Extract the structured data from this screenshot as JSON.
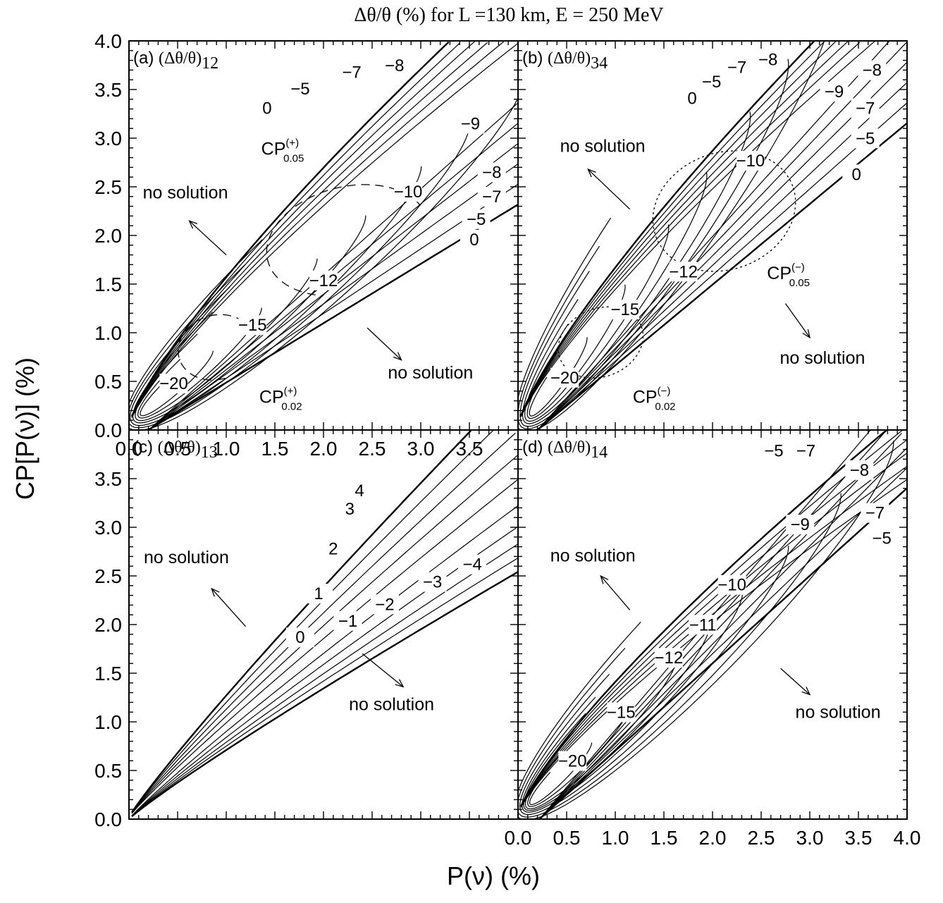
{
  "title": "Δθ/θ (%) for L =130 km, E = 250 MeV",
  "xlabel": "P(ν)  (%)",
  "ylabel": "CP[P(ν)] (%)",
  "chart_data": [
    {
      "type": "line",
      "panel": "a",
      "label_prefix": "(a)",
      "label_quantity": "(Δθ/θ)",
      "label_subscript": "12",
      "xlim": [
        0.0,
        4.0
      ],
      "ylim": [
        0.0,
        4.0
      ],
      "x_ticks": [
        "0.0",
        "0.5",
        "1.0",
        "1.5",
        "2.0",
        "2.5",
        "3.0",
        "3.5",
        ""
      ],
      "y_ticks": [
        "0.0",
        "0.5",
        "1.0",
        "1.5",
        "2.0",
        "2.5",
        "3.0",
        "3.5",
        "4.0"
      ],
      "contour_labels": [
        {
          "text": "0",
          "x": 1.42,
          "y": 3.25
        },
        {
          "text": "−5",
          "x": 1.76,
          "y": 3.45
        },
        {
          "text": "−7",
          "x": 2.29,
          "y": 3.62
        },
        {
          "text": "−8",
          "x": 2.73,
          "y": 3.69
        },
        {
          "text": "−9",
          "x": 3.51,
          "y": 3.09
        },
        {
          "text": "−8",
          "x": 3.73,
          "y": 2.59
        },
        {
          "text": "−7",
          "x": 3.73,
          "y": 2.34
        },
        {
          "text": "−5",
          "x": 3.57,
          "y": 2.11
        },
        {
          "text": "0",
          "x": 3.55,
          "y": 1.9
        },
        {
          "text": "−10",
          "x": 2.87,
          "y": 2.39
        },
        {
          "text": "−12",
          "x": 2.0,
          "y": 1.48
        },
        {
          "text": "−15",
          "x": 1.27,
          "y": 1.02
        },
        {
          "text": "−20",
          "x": 0.46,
          "y": 0.42
        }
      ],
      "annotations": [
        {
          "text": "no solution",
          "x": 0.58,
          "y": 2.38
        },
        {
          "text": "no solution",
          "x": 3.1,
          "y": 0.53
        },
        {
          "text": "CP",
          "sup": "(+)",
          "sub": "0.05",
          "x": 1.36,
          "y": 2.83
        },
        {
          "text": "CP",
          "sup": "(+)",
          "sub": "0.02",
          "x": 1.34,
          "y": 0.28
        }
      ]
    },
    {
      "type": "line",
      "panel": "b",
      "label_prefix": "(b)",
      "label_quantity": "(Δθ/θ)",
      "label_subscript": "34",
      "xlim": [
        0.0,
        4.0
      ],
      "ylim": [
        0.0,
        4.0
      ],
      "contour_labels": [
        {
          "text": "0",
          "x": 1.79,
          "y": 3.35
        },
        {
          "text": "−5",
          "x": 1.99,
          "y": 3.52
        },
        {
          "text": "−7",
          "x": 2.25,
          "y": 3.67
        },
        {
          "text": "−8",
          "x": 2.57,
          "y": 3.75
        },
        {
          "text": "−9",
          "x": 3.25,
          "y": 3.42
        },
        {
          "text": "−8",
          "x": 3.64,
          "y": 3.64
        },
        {
          "text": "−7",
          "x": 3.57,
          "y": 3.25
        },
        {
          "text": "−5",
          "x": 3.57,
          "y": 2.94
        },
        {
          "text": "0",
          "x": 3.48,
          "y": 2.57
        },
        {
          "text": "−10",
          "x": 2.39,
          "y": 2.71
        },
        {
          "text": "−12",
          "x": 1.7,
          "y": 1.57
        },
        {
          "text": "−15",
          "x": 1.1,
          "y": 1.18
        },
        {
          "text": "−20",
          "x": 0.48,
          "y": 0.48
        }
      ],
      "annotations": [
        {
          "text": "no solution",
          "x": 0.87,
          "y": 2.86
        },
        {
          "text": "no solution",
          "x": 3.13,
          "y": 0.68
        },
        {
          "text": "CP",
          "sup": "(−)",
          "sub": "0.05",
          "x": 2.56,
          "y": 1.55
        },
        {
          "text": "CP",
          "sup": "(−)",
          "sub": "0.02",
          "x": 1.18,
          "y": 0.28
        }
      ]
    },
    {
      "type": "line",
      "panel": "c",
      "label_prefix": "(c)",
      "label_quantity": "(Δθ/θ)",
      "label_subscript": "13",
      "xlim": [
        0.0,
        4.0
      ],
      "ylim": [
        0.0,
        4.0
      ],
      "y_ticks": [
        "0.0",
        "0.5",
        "1.0",
        "1.5",
        "2.0",
        "2.5",
        "3.0",
        "3.5",
        ""
      ],
      "contour_labels": [
        {
          "text": "4",
          "x": 2.37,
          "y": 3.32
        },
        {
          "text": "3",
          "x": 2.27,
          "y": 3.13
        },
        {
          "text": "2",
          "x": 2.1,
          "y": 2.72
        },
        {
          "text": "1",
          "x": 1.95,
          "y": 2.26
        },
        {
          "text": "0",
          "x": 1.76,
          "y": 1.81
        },
        {
          "text": "−1",
          "x": 2.25,
          "y": 1.98
        },
        {
          "text": "−2",
          "x": 2.63,
          "y": 2.15
        },
        {
          "text": "−3",
          "x": 3.12,
          "y": 2.38
        },
        {
          "text": "−4",
          "x": 3.53,
          "y": 2.56
        }
      ],
      "annotations": [
        {
          "text": "no solution",
          "x": 0.59,
          "y": 2.63
        },
        {
          "text": "no solution",
          "x": 2.7,
          "y": 1.12
        }
      ]
    },
    {
      "type": "line",
      "panel": "d",
      "label_prefix": "(d)",
      "label_quantity": "(Δθ/θ)",
      "label_subscript": "14",
      "xlim": [
        0.0,
        4.0
      ],
      "ylim": [
        0.0,
        4.0
      ],
      "x_ticks": [
        "0.0",
        "0.5",
        "1.0",
        "1.5",
        "2.0",
        "2.5",
        "3.0",
        "3.5",
        "4.0"
      ],
      "contour_labels": [
        {
          "text": "−5",
          "x": 2.63,
          "y": 3.73
        },
        {
          "text": "−7",
          "x": 2.96,
          "y": 3.73
        },
        {
          "text": "−8",
          "x": 3.51,
          "y": 3.53
        },
        {
          "text": "−9",
          "x": 2.9,
          "y": 2.97
        },
        {
          "text": "−7",
          "x": 3.67,
          "y": 3.09
        },
        {
          "text": "−5",
          "x": 3.74,
          "y": 2.83
        },
        {
          "text": "−10",
          "x": 2.2,
          "y": 2.35
        },
        {
          "text": "−11",
          "x": 1.9,
          "y": 1.94
        },
        {
          "text": "−12",
          "x": 1.55,
          "y": 1.6
        },
        {
          "text": "−15",
          "x": 1.06,
          "y": 1.04
        },
        {
          "text": "−20",
          "x": 0.56,
          "y": 0.54
        }
      ],
      "annotations": [
        {
          "text": "no solution",
          "x": 0.77,
          "y": 2.65
        },
        {
          "text": "no solution",
          "x": 3.29,
          "y": 1.04
        }
      ]
    }
  ]
}
